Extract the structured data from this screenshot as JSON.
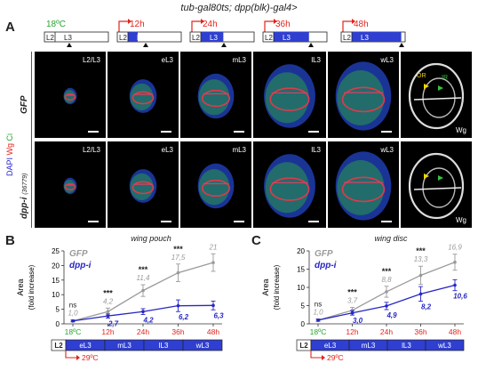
{
  "figure_title": "tub-gal80ts; dpp(blk)-gal4>",
  "panel_a": {
    "letter": "A",
    "timelines": [
      {
        "label": "18ºC",
        "color": "#27a52f"
      },
      {
        "label": "12h",
        "color": "#e2231a"
      },
      {
        "label": "24h",
        "color": "#e2231a"
      },
      {
        "label": "36h",
        "color": "#e2231a"
      },
      {
        "label": "48h",
        "color": "#e2231a"
      }
    ],
    "timeline_stages": {
      "l2": "L2",
      "l3": "L3"
    },
    "side_label_stains": {
      "dapi": "DAPI",
      "wg": "Wg",
      "ci": "Ci"
    },
    "rows": [
      {
        "label": "GFP",
        "stages": [
          "L2/L3",
          "eL3",
          "mL3",
          "lL3",
          "wL3"
        ],
        "wg_label": "Wg",
        "or_label": "OR",
        "ir_label": "IR"
      },
      {
        "label": "dpp-i",
        "label_sup": "(36779)",
        "stages": [
          "L2/L3",
          "eL3",
          "mL3",
          "lL3",
          "wL3"
        ],
        "wg_label": "Wg"
      }
    ]
  },
  "panel_b": {
    "letter": "B"
  },
  "panel_c": {
    "letter": "C"
  },
  "chart_data": [
    {
      "type": "line",
      "title": "wing pouch",
      "ylabel": "Area",
      "ylabel2": "(fold increase)",
      "categories": [
        "18ºC",
        "12h",
        "24h",
        "36h",
        "48h"
      ],
      "ylim": [
        0,
        25
      ],
      "yticks": [
        0,
        5,
        10,
        15,
        20,
        25
      ],
      "series": [
        {
          "name": "GFP",
          "color": "#9a9a9a",
          "values": [
            1.0,
            4.2,
            11.4,
            17.5,
            21.0
          ],
          "errors": [
            0.3,
            1.2,
            2.0,
            3.0,
            3.0
          ],
          "labels": [
            "1,0",
            "4,2",
            "11,4",
            "17,5",
            "21"
          ]
        },
        {
          "name": "dpp-i",
          "color": "#2727c4",
          "values": [
            1.0,
            2.7,
            4.2,
            6.2,
            6.3
          ],
          "errors": [
            0.3,
            0.7,
            1.0,
            2.0,
            1.5
          ],
          "labels": [
            "",
            "2,7",
            "4,2",
            "6,2",
            "6,3"
          ]
        }
      ],
      "significance": [
        "ns",
        "***",
        "***",
        "***",
        "***"
      ],
      "stage_bar": [
        "L2",
        "eL3",
        "mL3",
        "lL3",
        "wL3"
      ],
      "shift_label": "29ºC"
    },
    {
      "type": "line",
      "title": "wing disc",
      "ylabel": "Area",
      "ylabel2": "(fold increase)",
      "categories": [
        "18ºC",
        "12h",
        "24h",
        "36h",
        "48h"
      ],
      "ylim": [
        0,
        20
      ],
      "yticks": [
        0,
        5,
        10,
        15,
        20
      ],
      "series": [
        {
          "name": "GFP",
          "color": "#9a9a9a",
          "values": [
            1.0,
            3.7,
            8.8,
            13.3,
            16.9
          ],
          "errors": [
            0.3,
            0.8,
            1.5,
            2.5,
            2.2
          ],
          "labels": [
            "1,0",
            "3,7",
            "8,8",
            "13,3",
            "16,9"
          ]
        },
        {
          "name": "dpp-i",
          "color": "#2727c4",
          "values": [
            1.0,
            3.0,
            4.9,
            8.2,
            10.6
          ],
          "errors": [
            0.3,
            0.6,
            1.0,
            2.0,
            1.5
          ],
          "labels": [
            "",
            "3,0",
            "4,9",
            "8,2",
            "10,6"
          ]
        }
      ],
      "significance": [
        "ns",
        "***",
        "***",
        "***",
        "***"
      ],
      "stage_bar": [
        "L2",
        "eL3",
        "mL3",
        "lL3",
        "wL3"
      ],
      "shift_label": "29ºC"
    }
  ]
}
